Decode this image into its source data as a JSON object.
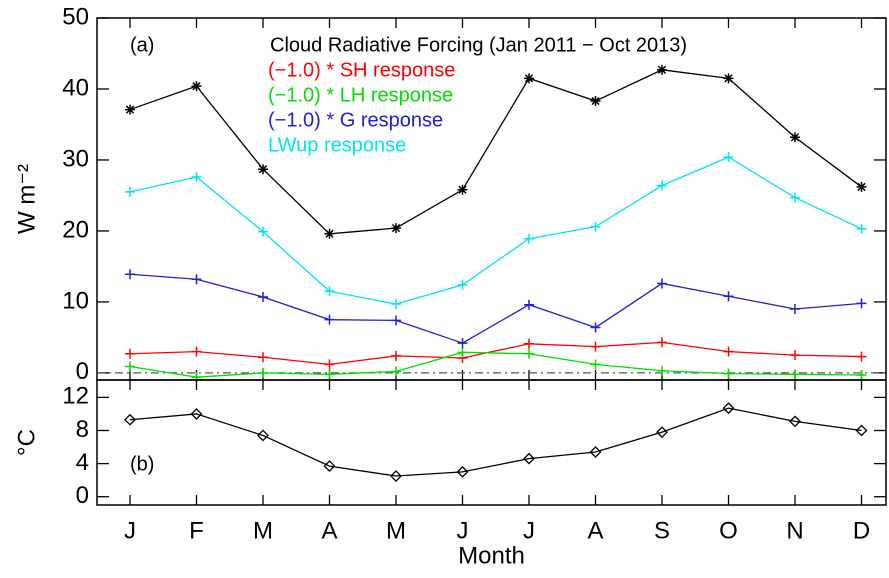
{
  "chart_data": [
    {
      "type": "line",
      "label": "(a)",
      "ylabel": "W m⁻²",
      "ylim": [
        -1,
        50
      ],
      "yticks": [
        0,
        10,
        20,
        30,
        40,
        50
      ],
      "zero_line": true,
      "series": [
        {
          "name": "Cloud Radiative Forcing (Jan 2011 − Oct 2013)",
          "color": "#000000",
          "marker": "asterisk",
          "values": [
            37.1,
            40.4,
            28.7,
            19.6,
            20.4,
            25.8,
            41.5,
            38.3,
            42.7,
            41.5,
            33.2,
            26.2
          ]
        },
        {
          "name": "(−1.0) * SH response",
          "color": "#ff0000",
          "marker": "plus",
          "values": [
            2.7,
            3.0,
            2.2,
            1.2,
            2.4,
            2.1,
            4.1,
            3.7,
            4.3,
            3.0,
            2.5,
            2.3
          ]
        },
        {
          "name": "(−1.0) * LH response",
          "color": "#00e000",
          "marker": "plus",
          "values": [
            0.9,
            -0.6,
            0.0,
            -0.2,
            0.2,
            2.9,
            2.7,
            1.2,
            0.3,
            -0.1,
            -0.2,
            -0.3
          ]
        },
        {
          "name": "(−1.0) * G response",
          "color": "#2020d0",
          "marker": "plus",
          "values": [
            13.9,
            13.2,
            10.7,
            7.5,
            7.4,
            4.2,
            9.6,
            6.4,
            12.6,
            10.8,
            9.0,
            9.8
          ]
        },
        {
          "name": "LWup response",
          "color": "#00e5ee",
          "marker": "plus",
          "values": [
            25.5,
            27.6,
            19.9,
            11.5,
            9.7,
            12.4,
            18.9,
            20.6,
            26.4,
            30.4,
            24.7,
            20.3
          ]
        }
      ]
    },
    {
      "type": "line",
      "label": "(b)",
      "ylabel": "°C",
      "xlabel": "Month",
      "categories": [
        "J",
        "F",
        "M",
        "A",
        "M",
        "J",
        "J",
        "A",
        "S",
        "O",
        "N",
        "D"
      ],
      "ylim": [
        -1,
        14.1
      ],
      "yticks": [
        0,
        4,
        8,
        12
      ],
      "series": [
        {
          "color": "#000000",
          "marker": "diamond",
          "values": [
            9.3,
            10.0,
            7.4,
            3.7,
            2.5,
            3.0,
            4.6,
            5.4,
            7.8,
            10.7,
            9.1,
            8.0
          ]
        }
      ]
    }
  ]
}
